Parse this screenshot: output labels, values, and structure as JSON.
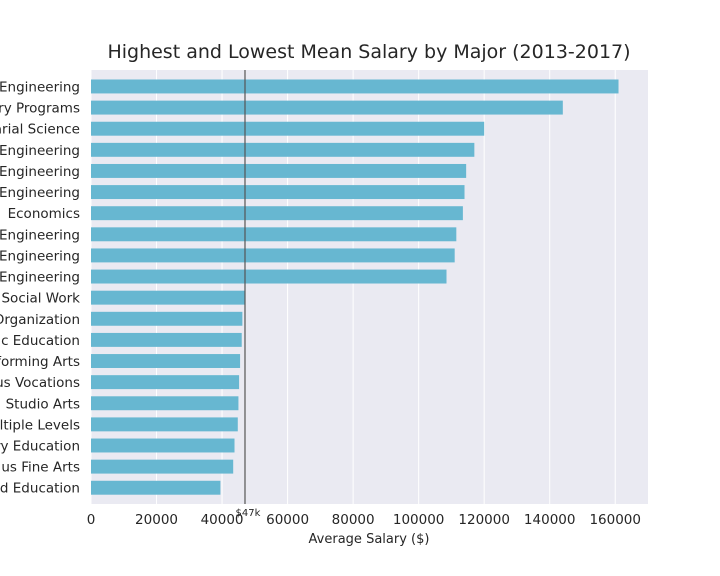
{
  "chart_data": {
    "type": "bar",
    "orientation": "horizontal",
    "title": "Highest and Lowest Mean Salary by Major (2013-2017)",
    "xlabel": "Average Salary ($)",
    "ylabel": "",
    "xlim": [
      0,
      170000
    ],
    "xticks": [
      0,
      20000,
      40000,
      60000,
      80000,
      100000,
      120000,
      140000,
      160000
    ],
    "grid": true,
    "bar_color": "#67b7d1",
    "background_color": "#eaeaf2",
    "categories": [
      "Engineering",
      "ry Programs",
      "arial Science",
      "Engineering",
      "Engineering",
      "Engineering",
      "Economics",
      "Engineering",
      "Engineering",
      "Engineering",
      "Social Work",
      "Organization",
      "ic Education",
      "forming Arts",
      "us Vocations",
      "Studio Arts",
      "ultiple Levels",
      "ry Education",
      "us Fine Arts",
      "d Education"
    ],
    "values": [
      161000,
      144000,
      120000,
      117000,
      114500,
      114000,
      113500,
      111500,
      111000,
      108500,
      47000,
      46200,
      46000,
      45500,
      45200,
      45000,
      44800,
      43800,
      43400,
      39500
    ],
    "reference_line": {
      "value": 47000,
      "label": "$47k",
      "color": "#555555"
    }
  }
}
